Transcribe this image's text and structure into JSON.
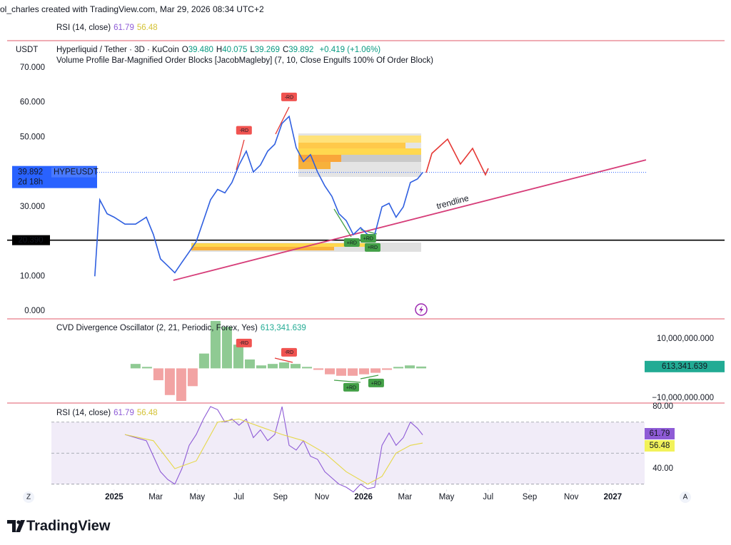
{
  "header": {
    "credit": "ol_charles created with TradingView.com, Mar 29, 2026 08:34 UTC+2"
  },
  "buttons": [
    "Z",
    "A"
  ],
  "footer": {
    "brand": "TradingView"
  },
  "chart_data": [
    {
      "type": "line",
      "currency": "USDT",
      "title": "Hyperliquid / Tether · 3D · KuCoin",
      "ohlc": [
        {
          "key": "O",
          "value": "39.480"
        },
        {
          "key": "H",
          "value": "40.075"
        },
        {
          "key": "L",
          "value": "39.269"
        },
        {
          "key": "C",
          "value": "39.892"
        }
      ],
      "change": "+0.419 (+1.06%)",
      "subtitle": "Volume Profile Bar-Magnified Order Blocks [JacobMagleby] (7, 10, Close Engulfs 100% Of Order Block)",
      "x": [
        -0.93,
        -0.69,
        -0.34,
        0,
        0.52,
        1.03,
        1.55,
        1.89,
        2.23,
        2.58,
        2.92,
        3.26,
        3.61,
        3.95,
        4.3,
        4.64,
        4.98,
        5.33,
        5.67,
        6.01,
        6.36,
        6.7,
        7.04,
        7.39,
        7.73,
        8.08,
        8.42,
        8.76,
        9.11,
        9.45,
        9.79,
        10.14,
        10.48,
        10.82,
        11.17,
        11.51,
        11.86,
        12.2,
        12.54,
        12.89,
        13.23,
        13.57,
        13.92,
        14.26,
        14.6,
        14.85
      ],
      "series": [
        {
          "name": "HYPEUSDT",
          "color": "#2f5fe0",
          "values": [
            10,
            32,
            28,
            27,
            25,
            25,
            27,
            22,
            15,
            13,
            11,
            14,
            17,
            20,
            26,
            32,
            35,
            34,
            37,
            42,
            46,
            40,
            42,
            46,
            48,
            54,
            56,
            47,
            43,
            45,
            40,
            36,
            33,
            28,
            26,
            22,
            24,
            22,
            22,
            30,
            31,
            27,
            30,
            37,
            38,
            39.892
          ]
        }
      ],
      "last_price": {
        "value": 39.892,
        "countdown": "2d 18h"
      },
      "level": {
        "value": 20.39,
        "label": "20.390"
      },
      "xlim": [
        -5.15,
        29.38
      ],
      "xticks": [
        {
          "value": 0,
          "label": "2025"
        },
        {
          "value": 2,
          "label": "Mar"
        },
        {
          "value": 4,
          "label": "May"
        },
        {
          "value": 6,
          "label": "Jul"
        },
        {
          "value": 8,
          "label": "Sep"
        },
        {
          "value": 10,
          "label": "Nov"
        },
        {
          "value": 12,
          "label": "2026"
        },
        {
          "value": 14,
          "label": "Mar"
        },
        {
          "value": 16,
          "label": "May"
        },
        {
          "value": 18,
          "label": "Jul"
        },
        {
          "value": 20,
          "label": "Sep"
        },
        {
          "value": 22,
          "label": "Nov"
        },
        {
          "value": 24,
          "label": "2027"
        }
      ],
      "ylim": [
        -2.26,
        77.8
      ],
      "yticks": [
        {
          "value": 70,
          "label": "70.000"
        },
        {
          "value": 60,
          "label": "60.000"
        },
        {
          "value": 50,
          "label": "50.000"
        },
        {
          "value": 30,
          "label": "30.000"
        },
        {
          "value": 10,
          "label": "10.000"
        },
        {
          "value": 0,
          "label": "0.000"
        }
      ],
      "trendline": {
        "label": "trendline",
        "color": "#d63c78",
        "x": [
          2.85,
          25.6
        ],
        "y": [
          8.83,
          43.5
        ]
      },
      "annotations": [
        {
          "label": "-RD",
          "x": 6.25,
          "y": 52.0,
          "color": "#f05350"
        },
        {
          "label": "-RD",
          "x": 8.42,
          "y": 61.6,
          "color": "#f05350"
        },
        {
          "label": "+RD",
          "x": 11.44,
          "y": 19.7,
          "color": "#43a047"
        },
        {
          "label": "+RD",
          "x": 12.23,
          "y": 20.9,
          "color": "#43a047"
        },
        {
          "label": "+RD",
          "x": 12.44,
          "y": 18.3,
          "color": "#43a047"
        }
      ]
    },
    {
      "type": "bar",
      "title": "CVD Divergence Oscillator (2, 21, Periodic, Forex, Yes)",
      "current": {
        "value": 613341.639,
        "label": "613,341.639"
      },
      "colors": {
        "up": "#8fca93",
        "down": "#f2a3a3",
        "label": "#22ab94"
      },
      "x": [
        1.03,
        1.58,
        2.13,
        2.68,
        3.23,
        3.78,
        4.33,
        4.88,
        5.43,
        5.98,
        6.53,
        7.08,
        7.63,
        8.18,
        8.73,
        9.28,
        9.83,
        10.38,
        10.93,
        11.48,
        12.03,
        12.58,
        13.13,
        13.68,
        14.23,
        14.78
      ],
      "values": [
        1500000,
        500000,
        -4000000,
        -9000000,
        -11000000,
        -6000000,
        5000000,
        16000000,
        14000000,
        8000000,
        3000000,
        1000000,
        1500000,
        2000000,
        1500000,
        500000,
        -500000,
        -2000000,
        -2500000,
        -2500000,
        -2000000,
        -1500000,
        -500000,
        500000,
        1000000,
        613341.639
      ],
      "ylim": [
        -11700000,
        16700000
      ],
      "yticks": [
        {
          "value": 10000000,
          "label": "10,000,000.000"
        },
        {
          "value": -10000000,
          "label": "−10,000,000.000"
        }
      ],
      "annotations": [
        {
          "label": "-RD",
          "x": 6.25,
          "y": 8550000,
          "color": "#f05350"
        },
        {
          "label": "-RD",
          "x": 8.42,
          "y": 5420000,
          "color": "#f05350"
        },
        {
          "label": "+RD",
          "x": 11.41,
          "y": -6390000,
          "color": "#43a047"
        },
        {
          "label": "+RD",
          "x": 12.61,
          "y": -4940000,
          "color": "#43a047"
        }
      ]
    },
    {
      "type": "line",
      "title": "RSI (14, close)",
      "series": [
        {
          "color": "#8e5bd6",
          "x": [
            0.52,
            1.03,
            1.55,
            1.89,
            2.23,
            2.58,
            2.92,
            3.26,
            3.61,
            3.95,
            4.3,
            4.64,
            4.98,
            5.33,
            5.67,
            6.01,
            6.36,
            6.7,
            7.04,
            7.39,
            7.73,
            8.08,
            8.42,
            8.76,
            9.11,
            9.45,
            9.79,
            10.14,
            10.48,
            10.82,
            11.17,
            11.51,
            11.86,
            12.2,
            12.54,
            12.89,
            13.23,
            13.57,
            13.92,
            14.26,
            14.6,
            14.85
          ],
          "values": [
            62,
            60,
            58,
            48,
            38,
            33,
            30,
            40,
            55,
            62,
            72,
            80,
            78,
            70,
            72,
            68,
            72,
            60,
            65,
            58,
            62,
            80,
            55,
            52,
            58,
            48,
            46,
            38,
            34,
            30,
            28,
            25,
            30,
            27,
            28,
            55,
            63,
            55,
            60,
            70,
            66,
            61.79
          ]
        },
        {
          "color": "#e6d84a",
          "x": [
            0.52,
            1.89,
            2.92,
            3.95,
            4.98,
            6.01,
            7.04,
            8.08,
            9.11,
            10.14,
            11.17,
            12.2,
            12.89,
            13.57,
            14.26,
            14.85
          ],
          "values": [
            62,
            58,
            40,
            45,
            70,
            72,
            67,
            62,
            58,
            50,
            38,
            30,
            35,
            50,
            55,
            56.48
          ]
        }
      ],
      "levels": [
        70,
        50,
        30
      ],
      "ylim": [
        29.4,
        82.3
      ],
      "yticks": [
        {
          "value": 80,
          "label": "80.00"
        },
        {
          "value": 40,
          "label": "40.00"
        }
      ]
    }
  ]
}
